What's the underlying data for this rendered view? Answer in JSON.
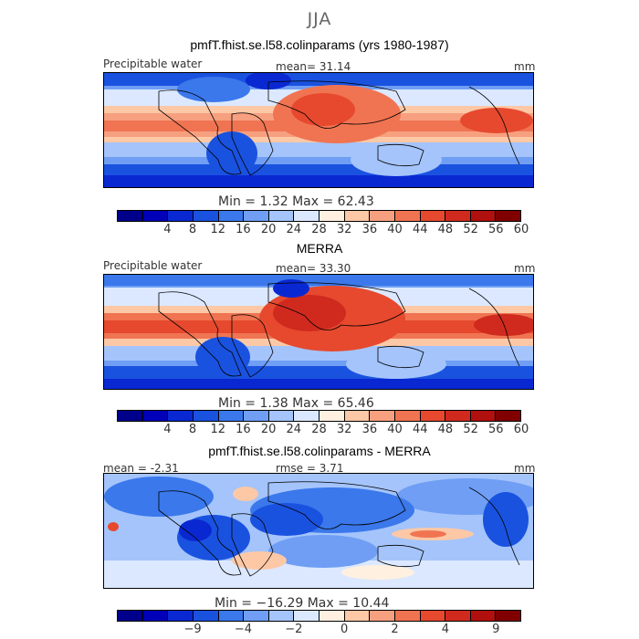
{
  "season": "JJA",
  "panels": [
    {
      "title": "pmfT.fhist.se.l58.colinparams (yrs 1980-1987)",
      "var_label": "Precipitable water",
      "stat_text": "mean=   31.14",
      "units": "mm",
      "minmax_text": "Min =     1.32  Max =   62.43",
      "colorbar": {
        "colors": [
          "#00008b",
          "#0000b8",
          "#0a28d2",
          "#1a52e0",
          "#3a78eb",
          "#6f9ef4",
          "#a4c4fb",
          "#dbe8ff",
          "#fff0e0",
          "#fdc8a6",
          "#f7a080",
          "#f07452",
          "#e6492e",
          "#d02a1e",
          "#b0100e",
          "#800000"
        ],
        "ticks": [
          "4",
          "8",
          "12",
          "16",
          "20",
          "24",
          "28",
          "32",
          "36",
          "40",
          "44",
          "48",
          "52",
          "56",
          "60"
        ]
      }
    },
    {
      "title": "MERRA",
      "var_label": "Precipitable water",
      "stat_text": "mean=   33.30",
      "units": "mm",
      "minmax_text": "Min =     1.38  Max =   65.46",
      "colorbar": {
        "colors": [
          "#00008b",
          "#0000b8",
          "#0a28d2",
          "#1a52e0",
          "#3a78eb",
          "#6f9ef4",
          "#a4c4fb",
          "#dbe8ff",
          "#fff0e0",
          "#fdc8a6",
          "#f7a080",
          "#f07452",
          "#e6492e",
          "#d02a1e",
          "#b0100e",
          "#800000"
        ],
        "ticks": [
          "4",
          "8",
          "12",
          "16",
          "20",
          "24",
          "28",
          "32",
          "36",
          "40",
          "44",
          "48",
          "52",
          "56",
          "60"
        ]
      }
    },
    {
      "title": "pmfT.fhist.se.l58.colinparams - MERRA",
      "stat_text": "mean =   -2.31",
      "stat2_text": "rmse =     3.71",
      "units": "mm",
      "minmax_text": "Min =  −16.29  Max =   10.44",
      "colorbar": {
        "colors": [
          "#00008b",
          "#0000b8",
          "#0a28d2",
          "#1a52e0",
          "#3a78eb",
          "#6f9ef4",
          "#a4c4fb",
          "#dbe8ff",
          "#fff0e0",
          "#fdc8a6",
          "#f7a080",
          "#f07452",
          "#e6492e",
          "#d02a1e",
          "#b0100e",
          "#800000"
        ],
        "ticks": [
          "−9",
          "−4",
          "−2",
          "0",
          "2",
          "4",
          "9"
        ]
      }
    }
  ],
  "chart_data": [
    {
      "type": "heatmap",
      "title": "pmfT.fhist.se.l58.colinparams (yrs 1980-1987)",
      "variable": "Precipitable water",
      "units": "mm",
      "mean": 31.14,
      "min": 1.32,
      "max": 62.43,
      "colorbar_ticks": [
        4,
        8,
        12,
        16,
        20,
        24,
        28,
        32,
        36,
        40,
        44,
        48,
        52,
        56,
        60
      ]
    },
    {
      "type": "heatmap",
      "title": "MERRA",
      "variable": "Precipitable water",
      "units": "mm",
      "mean": 33.3,
      "min": 1.38,
      "max": 65.46,
      "colorbar_ticks": [
        4,
        8,
        12,
        16,
        20,
        24,
        28,
        32,
        36,
        40,
        44,
        48,
        52,
        56,
        60
      ]
    },
    {
      "type": "heatmap",
      "title": "pmfT.fhist.se.l58.colinparams - MERRA",
      "units": "mm",
      "mean": -2.31,
      "rmse": 3.71,
      "min": -16.29,
      "max": 10.44,
      "colorbar_ticks": [
        -9,
        -4,
        -2,
        0,
        2,
        4,
        9
      ]
    }
  ]
}
